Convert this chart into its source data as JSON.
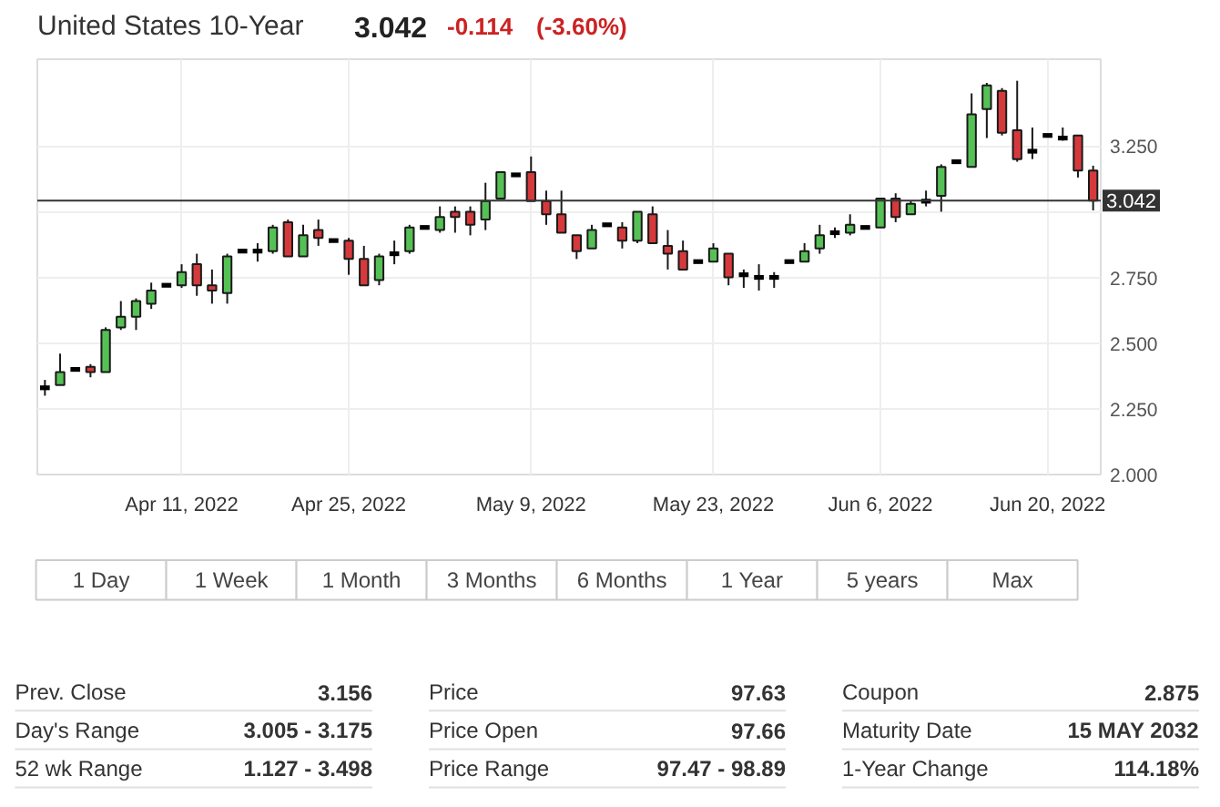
{
  "chart_data": {
    "type": "candlestick",
    "title": "United States 10-Year",
    "categories": [
      null,
      null,
      null,
      null,
      null,
      null,
      null,
      null,
      null,
      "Apr 11, 2022",
      null,
      null,
      null,
      null,
      null,
      null,
      null,
      null,
      null,
      null,
      "Apr 25, 2022",
      null,
      null,
      null,
      null,
      null,
      null,
      null,
      null,
      null,
      null,
      null,
      "May 9, 2022",
      null,
      null,
      null,
      null,
      null,
      null,
      null,
      null,
      null,
      null,
      null,
      "May 23, 2022",
      null,
      null,
      null,
      null,
      null,
      null,
      null,
      null,
      null,
      null,
      "Jun 6, 2022",
      null,
      null,
      null,
      null,
      null,
      null,
      null,
      null,
      null,
      null,
      "Jun 20, 2022",
      null,
      null,
      null
    ],
    "ohlc": [
      [
        2.33,
        2.36,
        2.3,
        2.33
      ],
      [
        2.34,
        2.46,
        2.34,
        2.39
      ],
      [
        2.4,
        2.4,
        2.4,
        2.4
      ],
      [
        2.41,
        2.42,
        2.37,
        2.39
      ],
      [
        2.39,
        2.56,
        2.39,
        2.55
      ],
      [
        2.56,
        2.66,
        2.55,
        2.6
      ],
      [
        2.6,
        2.67,
        2.55,
        2.66
      ],
      [
        2.65,
        2.73,
        2.63,
        2.7
      ],
      [
        2.72,
        2.72,
        2.72,
        2.72
      ],
      [
        2.72,
        2.8,
        2.71,
        2.77
      ],
      [
        2.8,
        2.84,
        2.68,
        2.72
      ],
      [
        2.72,
        2.78,
        2.65,
        2.7
      ],
      [
        2.69,
        2.84,
        2.65,
        2.83
      ],
      [
        2.85,
        2.85,
        2.85,
        2.85
      ],
      [
        2.85,
        2.88,
        2.81,
        2.85
      ],
      [
        2.85,
        2.95,
        2.84,
        2.94
      ],
      [
        2.96,
        2.97,
        2.83,
        2.83
      ],
      [
        2.83,
        2.95,
        2.83,
        2.91
      ],
      [
        2.93,
        2.97,
        2.87,
        2.9
      ],
      [
        2.89,
        2.89,
        2.89,
        2.89
      ],
      [
        2.89,
        2.9,
        2.76,
        2.82
      ],
      [
        2.82,
        2.87,
        2.72,
        2.72
      ],
      [
        2.74,
        2.84,
        2.72,
        2.83
      ],
      [
        2.84,
        2.89,
        2.8,
        2.84
      ],
      [
        2.85,
        2.95,
        2.84,
        2.94
      ],
      [
        2.94,
        2.94,
        2.94,
        2.94
      ],
      [
        2.93,
        3.02,
        2.92,
        2.98
      ],
      [
        3.0,
        3.02,
        2.92,
        2.98
      ],
      [
        3.0,
        3.02,
        2.91,
        2.95
      ],
      [
        2.97,
        3.11,
        2.93,
        3.04
      ],
      [
        3.05,
        3.15,
        3.05,
        3.15
      ],
      [
        3.14,
        3.14,
        3.14,
        3.14
      ],
      [
        3.15,
        3.21,
        3.04,
        3.04
      ],
      [
        3.04,
        3.08,
        2.95,
        2.99
      ],
      [
        2.99,
        3.08,
        2.92,
        2.92
      ],
      [
        2.91,
        2.91,
        2.82,
        2.85
      ],
      [
        2.86,
        2.95,
        2.86,
        2.93
      ],
      [
        2.95,
        2.95,
        2.95,
        2.95
      ],
      [
        2.94,
        2.96,
        2.86,
        2.89
      ],
      [
        2.89,
        3.0,
        2.88,
        3.0
      ],
      [
        2.99,
        3.02,
        2.88,
        2.88
      ],
      [
        2.87,
        2.93,
        2.78,
        2.84
      ],
      [
        2.85,
        2.89,
        2.78,
        2.78
      ],
      [
        2.81,
        2.81,
        2.81,
        2.81
      ],
      [
        2.81,
        2.88,
        2.81,
        2.86
      ],
      [
        2.84,
        2.84,
        2.72,
        2.75
      ],
      [
        2.76,
        2.78,
        2.71,
        2.76
      ],
      [
        2.75,
        2.8,
        2.7,
        2.75
      ],
      [
        2.75,
        2.77,
        2.71,
        2.75
      ],
      [
        2.81,
        2.81,
        2.81,
        2.81
      ],
      [
        2.81,
        2.88,
        2.81,
        2.85
      ],
      [
        2.86,
        2.95,
        2.84,
        2.91
      ],
      [
        2.92,
        2.94,
        2.9,
        2.92
      ],
      [
        2.92,
        2.99,
        2.91,
        2.95
      ],
      [
        2.94,
        2.94,
        2.94,
        2.94
      ],
      [
        2.94,
        3.05,
        2.94,
        3.05
      ],
      [
        3.05,
        3.07,
        2.96,
        2.98
      ],
      [
        2.99,
        3.04,
        2.99,
        3.03
      ],
      [
        3.04,
        3.08,
        3.02,
        3.04
      ],
      [
        3.06,
        3.18,
        3.0,
        3.17
      ],
      [
        3.19,
        3.19,
        3.19,
        3.19
      ],
      [
        3.17,
        3.45,
        3.17,
        3.37
      ],
      [
        3.39,
        3.49,
        3.28,
        3.48
      ],
      [
        3.46,
        3.47,
        3.29,
        3.3
      ],
      [
        3.31,
        3.498,
        3.19,
        3.2
      ],
      [
        3.23,
        3.32,
        3.2,
        3.23
      ],
      [
        3.29,
        3.29,
        3.29,
        3.29
      ],
      [
        3.28,
        3.32,
        3.27,
        3.28
      ],
      [
        3.29,
        3.29,
        3.13,
        3.156
      ],
      [
        3.156,
        3.175,
        3.005,
        3.042
      ]
    ],
    "colors": [
      "#000000",
      "#55c155",
      "#000000",
      "#d6393c",
      "#55c155",
      "#55c155",
      "#55c155",
      "#55c155",
      "#000000",
      "#55c155",
      "#d6393c",
      "#d6393c",
      "#55c155",
      "#000000",
      "#000000",
      "#55c155",
      "#d6393c",
      "#55c155",
      "#d6393c",
      "#000000",
      "#d6393c",
      "#d6393c",
      "#55c155",
      "#000000",
      "#55c155",
      "#000000",
      "#55c155",
      "#d6393c",
      "#d6393c",
      "#55c155",
      "#55c155",
      "#000000",
      "#d6393c",
      "#d6393c",
      "#d6393c",
      "#d6393c",
      "#55c155",
      "#000000",
      "#d6393c",
      "#55c155",
      "#d6393c",
      "#d6393c",
      "#d6393c",
      "#000000",
      "#55c155",
      "#d6393c",
      "#000000",
      "#000000",
      "#000000",
      "#000000",
      "#55c155",
      "#55c155",
      "#000000",
      "#55c155",
      "#000000",
      "#55c155",
      "#d6393c",
      "#55c155",
      "#000000",
      "#55c155",
      "#000000",
      "#55c155",
      "#55c155",
      "#d6393c",
      "#d6393c",
      "#000000",
      "#000000",
      "#000000",
      "#d6393c",
      "#d6393c"
    ],
    "ylim": [
      2.0,
      3.58
    ],
    "yticks": [
      {
        "value": 2.0,
        "label": "2.000"
      },
      {
        "value": 2.25,
        "label": "2.250"
      },
      {
        "value": 2.5,
        "label": "2.500"
      },
      {
        "value": 2.75,
        "label": "2.750"
      },
      {
        "value": 3.0,
        "label": null
      },
      {
        "value": 3.25,
        "label": "3.250"
      }
    ],
    "grid": true,
    "ref_lines": [
      {
        "axis": "y",
        "value": 3.042,
        "label": "3.042",
        "color": "#333333"
      }
    ],
    "annotations": [
      "3.042",
      "-0.114",
      "(-3.60%)",
      "1 Day",
      "1 Week",
      "1 Month",
      "3 Months",
      "6 Months",
      "1 Year",
      "5 years",
      "Max",
      "Prev. Close",
      "3.156",
      "Price",
      "97.63",
      "Coupon",
      "2.875",
      "Day's Range",
      "3.005 - 3.175",
      "Price Open",
      "97.66",
      "Maturity Date",
      "15 MAY 2032",
      "52 wk Range",
      "1.127 - 3.498",
      "Price Range",
      "97.47 - 98.89",
      "1-Year Change",
      "114.18%"
    ]
  }
}
